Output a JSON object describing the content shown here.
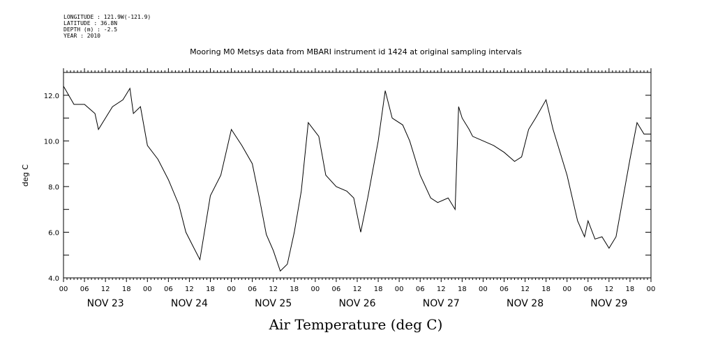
{
  "meta": {
    "longitude": "LONGITUDE : 121.9W(-121.9)",
    "latitude": "LATITUDE : 36.8N",
    "depth": "DEPTH (m) : -2.5",
    "year": "YEAR : 2010"
  },
  "chart_data": {
    "type": "line",
    "title": "Mooring M0 Metsys data from MBARI instrument id 1424 at original sampling intervals",
    "xlabel": "Air Temperature (deg C)",
    "ylabel": "deg C",
    "ylim": [
      4.0,
      13.0
    ],
    "y_ticks": [
      4.0,
      5.0,
      6.0,
      7.0,
      8.0,
      9.0,
      10.0,
      11.0,
      12.0,
      13.0
    ],
    "y_tick_labels": [
      "4.0",
      "6.0",
      "8.0",
      "10.0",
      "12.0"
    ],
    "y_tick_label_values": [
      4.0,
      6.0,
      8.0,
      10.0,
      12.0
    ],
    "xlim": [
      "2010-11-23 00:00",
      "2010-11-30 00:00"
    ],
    "x_hour_labels": [
      "00",
      "06",
      "12",
      "18"
    ],
    "x_day_labels": [
      "NOV 23",
      "NOV 24",
      "NOV 25",
      "NOV 26",
      "NOV 27",
      "NOV 28",
      "NOV 29"
    ],
    "grid": false,
    "legend": "none",
    "series": [
      {
        "x": [
          "2010-11-23 00:00",
          "2010-11-23 03:00",
          "2010-11-23 06:00",
          "2010-11-23 09:00",
          "2010-11-23 10:00",
          "2010-11-23 12:00",
          "2010-11-23 14:00",
          "2010-11-23 17:00",
          "2010-11-23 19:00",
          "2010-11-23 20:00",
          "2010-11-23 22:00",
          "2010-11-24 00:00",
          "2010-11-24 03:00",
          "2010-11-24 06:00",
          "2010-11-24 09:00",
          "2010-11-24 11:00",
          "2010-11-24 13:00",
          "2010-11-24 15:00",
          "2010-11-24 18:00",
          "2010-11-24 21:00",
          "2010-11-25 00:00",
          "2010-11-25 03:00",
          "2010-11-25 06:00",
          "2010-11-25 08:00",
          "2010-11-25 10:00",
          "2010-11-25 12:00",
          "2010-11-25 14:00",
          "2010-11-25 16:00",
          "2010-11-25 18:00",
          "2010-11-25 20:00",
          "2010-11-25 22:00",
          "2010-11-26 01:00",
          "2010-11-26 03:00",
          "2010-11-26 06:00",
          "2010-11-26 09:00",
          "2010-11-26 11:00",
          "2010-11-26 13:00",
          "2010-11-26 15:00",
          "2010-11-26 18:00",
          "2010-11-26 20:00",
          "2010-11-26 22:00",
          "2010-11-27 01:00",
          "2010-11-27 03:00",
          "2010-11-27 06:00",
          "2010-11-27 09:00",
          "2010-11-27 11:00",
          "2010-11-27 14:00",
          "2010-11-27 16:00",
          "2010-11-27 17:00",
          "2010-11-27 18:00",
          "2010-11-27 20:00",
          "2010-11-27 21:00",
          "2010-11-28 00:00",
          "2010-11-28 03:00",
          "2010-11-28 06:00",
          "2010-11-28 09:00",
          "2010-11-28 11:00",
          "2010-11-28 13:00",
          "2010-11-28 15:00",
          "2010-11-28 18:00",
          "2010-11-28 20:00",
          "2010-11-29 00:00",
          "2010-11-29 03:00",
          "2010-11-29 05:00",
          "2010-11-29 06:00",
          "2010-11-29 08:00",
          "2010-11-29 10:00",
          "2010-11-29 12:00",
          "2010-11-29 14:00",
          "2010-11-29 16:00",
          "2010-11-29 18:00",
          "2010-11-29 20:00",
          "2010-11-29 22:00",
          "2010-11-30 00:00"
        ],
        "y": [
          12.4,
          11.6,
          11.6,
          11.2,
          10.5,
          11.0,
          11.5,
          11.8,
          12.3,
          11.2,
          11.5,
          9.8,
          9.2,
          8.3,
          7.2,
          6.0,
          5.4,
          4.8,
          7.6,
          8.5,
          10.5,
          9.8,
          9.0,
          7.5,
          5.9,
          5.2,
          4.3,
          4.6,
          6.0,
          7.8,
          10.8,
          10.2,
          8.5,
          8.0,
          7.8,
          7.5,
          6.0,
          7.5,
          10.0,
          12.2,
          11.0,
          10.7,
          10.0,
          8.5,
          7.5,
          7.3,
          7.5,
          7.0,
          11.5,
          11.0,
          10.5,
          10.2,
          10.0,
          9.8,
          9.5,
          9.1,
          9.3,
          10.5,
          11.0,
          11.8,
          10.5,
          8.5,
          6.5,
          5.8,
          6.5,
          5.7,
          5.8,
          5.3,
          5.8,
          7.5,
          9.2,
          10.8,
          10.3,
          10.3
        ]
      }
    ]
  }
}
